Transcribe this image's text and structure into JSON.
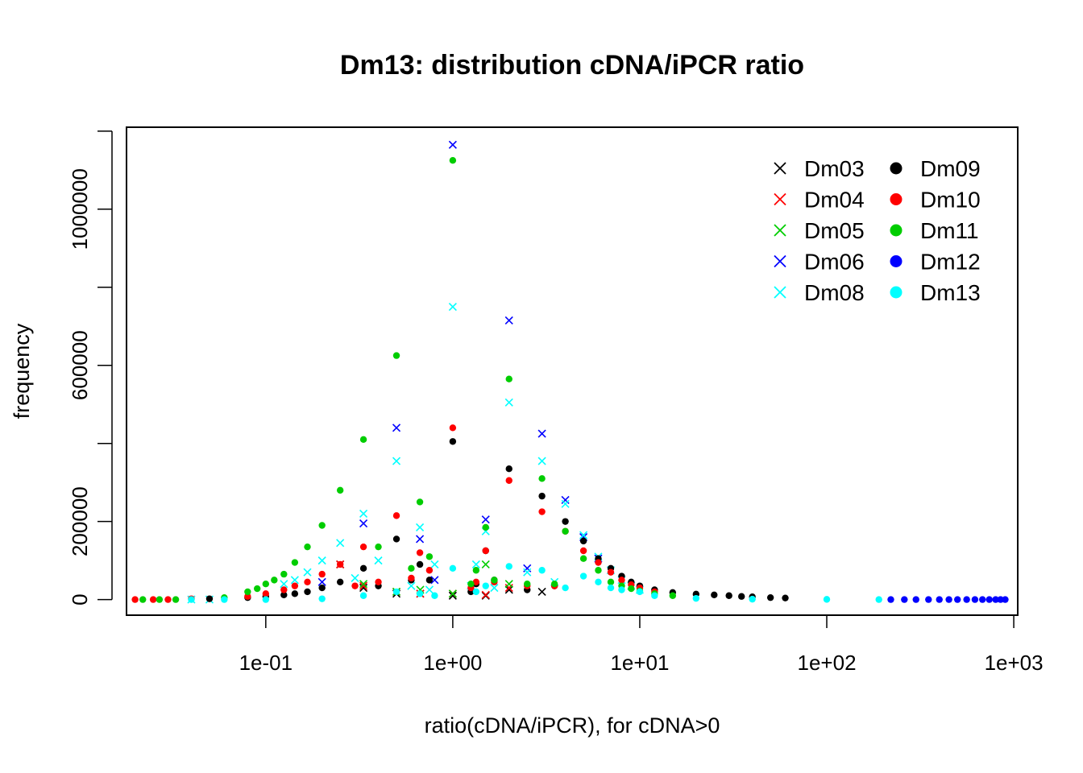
{
  "chart_data": {
    "type": "scatter",
    "title": "Dm13: distribution cDNA/iPCR ratio",
    "xlabel": "ratio(cDNA/iPCR), for cDNA>0",
    "ylabel": "frequency",
    "x_scale": "log",
    "xlim": [
      0.018,
      1050
    ],
    "ylim": [
      -40000,
      1210000
    ],
    "x_ticks": [
      0.1,
      1,
      10,
      100,
      1000
    ],
    "x_tick_labels": [
      "1e-01",
      "1e+00",
      "1e+01",
      "1e+02",
      "1e+03"
    ],
    "y_ticks": [
      0,
      200000,
      400000,
      600000,
      800000,
      1000000,
      1200000
    ],
    "y_tick_labels": [
      "0",
      "200000",
      "",
      "600000",
      "",
      "1000000",
      ""
    ],
    "legend_position": "top-right",
    "grid": false,
    "series": [
      {
        "name": "Dm03",
        "marker": "x",
        "color": "#000000",
        "points": [
          [
            0.25,
            90000
          ],
          [
            0.333,
            30000
          ],
          [
            0.5,
            15000
          ],
          [
            1,
            10000
          ],
          [
            2,
            25000
          ],
          [
            3,
            20000
          ],
          [
            0.67,
            15000
          ],
          [
            1.5,
            10000
          ]
        ]
      },
      {
        "name": "Dm04",
        "marker": "x",
        "color": "#ff0000",
        "points": [
          [
            0.25,
            90000
          ],
          [
            0.333,
            35000
          ],
          [
            0.5,
            20000
          ],
          [
            1,
            15000
          ],
          [
            2,
            30000
          ],
          [
            1.5,
            12000
          ],
          [
            0.67,
            15000
          ]
        ]
      },
      {
        "name": "Dm05",
        "marker": "x",
        "color": "#00cd00",
        "points": [
          [
            0.333,
            40000
          ],
          [
            0.5,
            20000
          ],
          [
            1,
            15000
          ],
          [
            1.5,
            90000
          ],
          [
            2,
            40000
          ],
          [
            0.67,
            25000
          ]
        ]
      },
      {
        "name": "Dm06",
        "marker": "x",
        "color": "#0000ff",
        "points": [
          [
            0.2,
            45000
          ],
          [
            0.333,
            195000
          ],
          [
            0.5,
            440000
          ],
          [
            0.667,
            155000
          ],
          [
            0.8,
            50000
          ],
          [
            1,
            1165000
          ],
          [
            1.5,
            205000
          ],
          [
            2,
            715000
          ],
          [
            2.5,
            80000
          ],
          [
            3,
            425000
          ],
          [
            4,
            255000
          ],
          [
            5,
            160000
          ],
          [
            6,
            105000
          ]
        ]
      },
      {
        "name": "Dm08",
        "marker": "x",
        "color": "#00ffff",
        "points": [
          [
            0.125,
            40000
          ],
          [
            0.143,
            50000
          ],
          [
            0.167,
            70000
          ],
          [
            0.2,
            100000
          ],
          [
            0.25,
            145000
          ],
          [
            0.3,
            55000
          ],
          [
            0.333,
            220000
          ],
          [
            0.4,
            100000
          ],
          [
            0.5,
            355000
          ],
          [
            0.6,
            35000
          ],
          [
            0.667,
            185000
          ],
          [
            0.75,
            25000
          ],
          [
            0.8,
            90000
          ],
          [
            1,
            750000
          ],
          [
            1.25,
            35000
          ],
          [
            1.333,
            90000
          ],
          [
            1.5,
            175000
          ],
          [
            1.667,
            30000
          ],
          [
            2,
            505000
          ],
          [
            2.5,
            70000
          ],
          [
            3,
            355000
          ],
          [
            3.5,
            45000
          ],
          [
            4,
            245000
          ],
          [
            5,
            165000
          ],
          [
            6,
            110000
          ],
          [
            7,
            75000
          ],
          [
            8,
            50000
          ],
          [
            9,
            35000
          ],
          [
            10,
            25000
          ],
          [
            0.04,
            0
          ],
          [
            0.05,
            0
          ]
        ]
      },
      {
        "name": "Dm09",
        "marker": "dot",
        "color": "#000000",
        "points": [
          [
            0.05,
            2000
          ],
          [
            0.08,
            5000
          ],
          [
            0.1,
            8000
          ],
          [
            0.125,
            12000
          ],
          [
            0.143,
            15000
          ],
          [
            0.167,
            20000
          ],
          [
            0.2,
            30000
          ],
          [
            0.25,
            45000
          ],
          [
            0.333,
            80000
          ],
          [
            0.4,
            35000
          ],
          [
            0.5,
            155000
          ],
          [
            0.6,
            50000
          ],
          [
            0.667,
            90000
          ],
          [
            0.75,
            50000
          ],
          [
            1,
            405000
          ],
          [
            1.25,
            20000
          ],
          [
            1.333,
            40000
          ],
          [
            1.5,
            125000
          ],
          [
            1.667,
            50000
          ],
          [
            2,
            335000
          ],
          [
            2.5,
            25000
          ],
          [
            3,
            265000
          ],
          [
            3.5,
            35000
          ],
          [
            4,
            200000
          ],
          [
            5,
            150000
          ],
          [
            6,
            105000
          ],
          [
            7,
            80000
          ],
          [
            8,
            60000
          ],
          [
            9,
            45000
          ],
          [
            10,
            35000
          ],
          [
            12,
            25000
          ],
          [
            15,
            18000
          ],
          [
            20,
            14000
          ],
          [
            25,
            12000
          ],
          [
            30,
            10000
          ],
          [
            35,
            8000
          ],
          [
            40,
            7000
          ],
          [
            50,
            5000
          ],
          [
            60,
            4000
          ]
        ]
      },
      {
        "name": "Dm10",
        "marker": "dot",
        "color": "#ff0000",
        "points": [
          [
            0.02,
            0
          ],
          [
            0.025,
            0
          ],
          [
            0.03,
            0
          ],
          [
            0.04,
            2000
          ],
          [
            0.08,
            8000
          ],
          [
            0.1,
            15000
          ],
          [
            0.125,
            25000
          ],
          [
            0.143,
            35000
          ],
          [
            0.167,
            45000
          ],
          [
            0.2,
            65000
          ],
          [
            0.25,
            90000
          ],
          [
            0.3,
            35000
          ],
          [
            0.333,
            135000
          ],
          [
            0.4,
            45000
          ],
          [
            0.5,
            215000
          ],
          [
            0.6,
            55000
          ],
          [
            0.667,
            120000
          ],
          [
            0.75,
            75000
          ],
          [
            1,
            440000
          ],
          [
            1.25,
            30000
          ],
          [
            1.333,
            45000
          ],
          [
            1.5,
            125000
          ],
          [
            1.667,
            45000
          ],
          [
            2,
            305000
          ],
          [
            2.5,
            35000
          ],
          [
            3,
            225000
          ],
          [
            3.5,
            35000
          ],
          [
            4,
            175000
          ],
          [
            5,
            125000
          ],
          [
            6,
            95000
          ],
          [
            7,
            70000
          ],
          [
            8,
            50000
          ],
          [
            9,
            38000
          ],
          [
            10,
            30000
          ],
          [
            12,
            20000
          ]
        ]
      },
      {
        "name": "Dm11",
        "marker": "dot",
        "color": "#00cd00",
        "points": [
          [
            0.022,
            0
          ],
          [
            0.027,
            0
          ],
          [
            0.033,
            0
          ],
          [
            0.06,
            5000
          ],
          [
            0.08,
            20000
          ],
          [
            0.09,
            28000
          ],
          [
            0.1,
            40000
          ],
          [
            0.111,
            50000
          ],
          [
            0.125,
            65000
          ],
          [
            0.143,
            95000
          ],
          [
            0.167,
            135000
          ],
          [
            0.2,
            190000
          ],
          [
            0.25,
            280000
          ],
          [
            0.333,
            410000
          ],
          [
            0.4,
            135000
          ],
          [
            0.5,
            625000
          ],
          [
            0.6,
            80000
          ],
          [
            0.667,
            250000
          ],
          [
            0.75,
            110000
          ],
          [
            1,
            1125000
          ],
          [
            1.25,
            40000
          ],
          [
            1.333,
            75000
          ],
          [
            1.5,
            185000
          ],
          [
            1.667,
            50000
          ],
          [
            2,
            565000
          ],
          [
            2.5,
            40000
          ],
          [
            3,
            310000
          ],
          [
            3.5,
            40000
          ],
          [
            4,
            175000
          ],
          [
            5,
            105000
          ],
          [
            6,
            75000
          ],
          [
            7,
            45000
          ],
          [
            8,
            35000
          ],
          [
            9,
            28000
          ],
          [
            10,
            22000
          ],
          [
            12,
            15000
          ],
          [
            15,
            10000
          ]
        ]
      },
      {
        "name": "Dm12",
        "marker": "dot",
        "color": "#0000ff",
        "points": [
          [
            220,
            0
          ],
          [
            260,
            0
          ],
          [
            300,
            0
          ],
          [
            350,
            0
          ],
          [
            400,
            0
          ],
          [
            450,
            0
          ],
          [
            500,
            0
          ],
          [
            560,
            0
          ],
          [
            620,
            0
          ],
          [
            680,
            0
          ],
          [
            740,
            0
          ],
          [
            800,
            0
          ],
          [
            850,
            0
          ],
          [
            900,
            0
          ]
        ]
      },
      {
        "name": "Dm13",
        "marker": "dot",
        "color": "#00ffff",
        "points": [
          [
            0.04,
            0
          ],
          [
            0.06,
            0
          ],
          [
            0.1,
            0
          ],
          [
            0.2,
            2000
          ],
          [
            0.333,
            10000
          ],
          [
            0.5,
            20000
          ],
          [
            0.667,
            15000
          ],
          [
            0.8,
            10000
          ],
          [
            1,
            80000
          ],
          [
            1.333,
            20000
          ],
          [
            1.5,
            35000
          ],
          [
            2,
            85000
          ],
          [
            3,
            75000
          ],
          [
            4,
            30000
          ],
          [
            5,
            60000
          ],
          [
            6,
            45000
          ],
          [
            7,
            30000
          ],
          [
            8,
            25000
          ],
          [
            10,
            20000
          ],
          [
            12,
            10000
          ],
          [
            20,
            3000
          ],
          [
            40,
            1000
          ],
          [
            100,
            500
          ],
          [
            190,
            0
          ]
        ]
      }
    ]
  }
}
